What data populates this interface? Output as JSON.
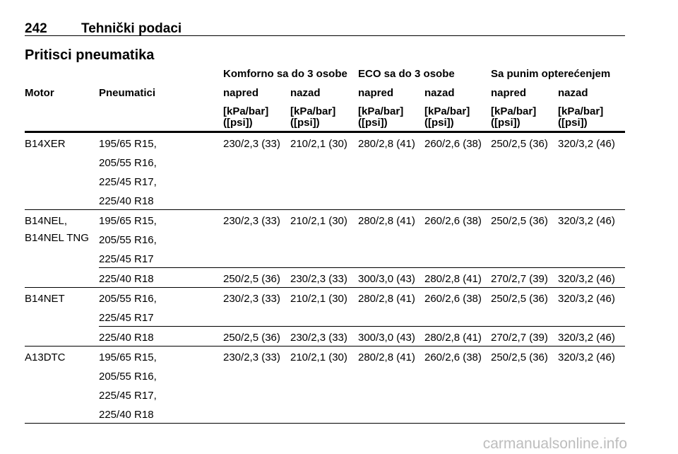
{
  "header": {
    "page": "242",
    "section": "Tehnički podaci"
  },
  "title": "Pritisci pneumatika",
  "table": {
    "motor_header": "Motor",
    "tyre_header": "Pneumatici",
    "group_headers": [
      "Komforno sa do 3 osobe",
      "ECO sa do 3 osobe",
      "Sa punim opterećenjem"
    ],
    "sub_headers": [
      "napred",
      "nazad",
      "napred",
      "nazad",
      "napred",
      "nazad"
    ],
    "units": [
      [
        "[kPa/bar]",
        "([psi])"
      ],
      [
        "[kPa/bar]",
        "([psi])"
      ],
      [
        "[kPa/bar]",
        "([psi])"
      ],
      [
        "[kPa/bar]",
        "([psi])"
      ],
      [
        "[kPa/bar]",
        "([psi])"
      ],
      [
        "[kPa/bar]",
        "([psi])"
      ]
    ],
    "rows": [
      {
        "motor": [
          "B14XER"
        ],
        "groups": [
          {
            "tyres": [
              "195/65 R15,",
              "205/55 R16,",
              "225/45 R17,",
              "225/40 R18"
            ],
            "values": [
              "230/2,3 (33)",
              "210/2,1 (30)",
              "280/2,8 (41)",
              "260/2,6 (38)",
              "250/2,5 (36)",
              "320/3,2 (46)"
            ]
          }
        ]
      },
      {
        "motor": [
          "B14NEL,",
          "B14NEL TNG"
        ],
        "groups": [
          {
            "tyres": [
              "195/65 R15,",
              "205/55 R16,",
              "225/45 R17"
            ],
            "values": [
              "230/2,3 (33)",
              "210/2,1 (30)",
              "280/2,8 (41)",
              "260/2,6 (38)",
              "250/2,5 (36)",
              "320/3,2 (46)"
            ]
          },
          {
            "tyres": [
              "225/40 R18"
            ],
            "values": [
              "250/2,5 (36)",
              "230/2,3 (33)",
              "300/3,0 (43)",
              "280/2,8 (41)",
              "270/2,7 (39)",
              "320/3,2 (46)"
            ]
          }
        ]
      },
      {
        "motor": [
          "B14NET"
        ],
        "groups": [
          {
            "tyres": [
              "205/55 R16,",
              "225/45 R17"
            ],
            "values": [
              "230/2,3 (33)",
              "210/2,1 (30)",
              "280/2,8 (41)",
              "260/2,6 (38)",
              "250/2,5 (36)",
              "320/3,2 (46)"
            ]
          },
          {
            "tyres": [
              "225/40 R18"
            ],
            "values": [
              "250/2,5 (36)",
              "230/2,3 (33)",
              "300/3,0 (43)",
              "280/2,8 (41)",
              "270/2,7 (39)",
              "320/3,2 (46)"
            ]
          }
        ]
      },
      {
        "motor": [
          "A13DTC"
        ],
        "groups": [
          {
            "tyres": [
              "195/65 R15,",
              "205/55 R16,",
              "225/45 R17,",
              "225/40 R18"
            ],
            "values": [
              "230/2,3 (33)",
              "210/2,1 (30)",
              "280/2,8 (41)",
              "260/2,6 (38)",
              "250/2,5 (36)",
              "320/3,2 (46)"
            ]
          }
        ]
      }
    ]
  },
  "watermark": "carmanualsonline.info"
}
